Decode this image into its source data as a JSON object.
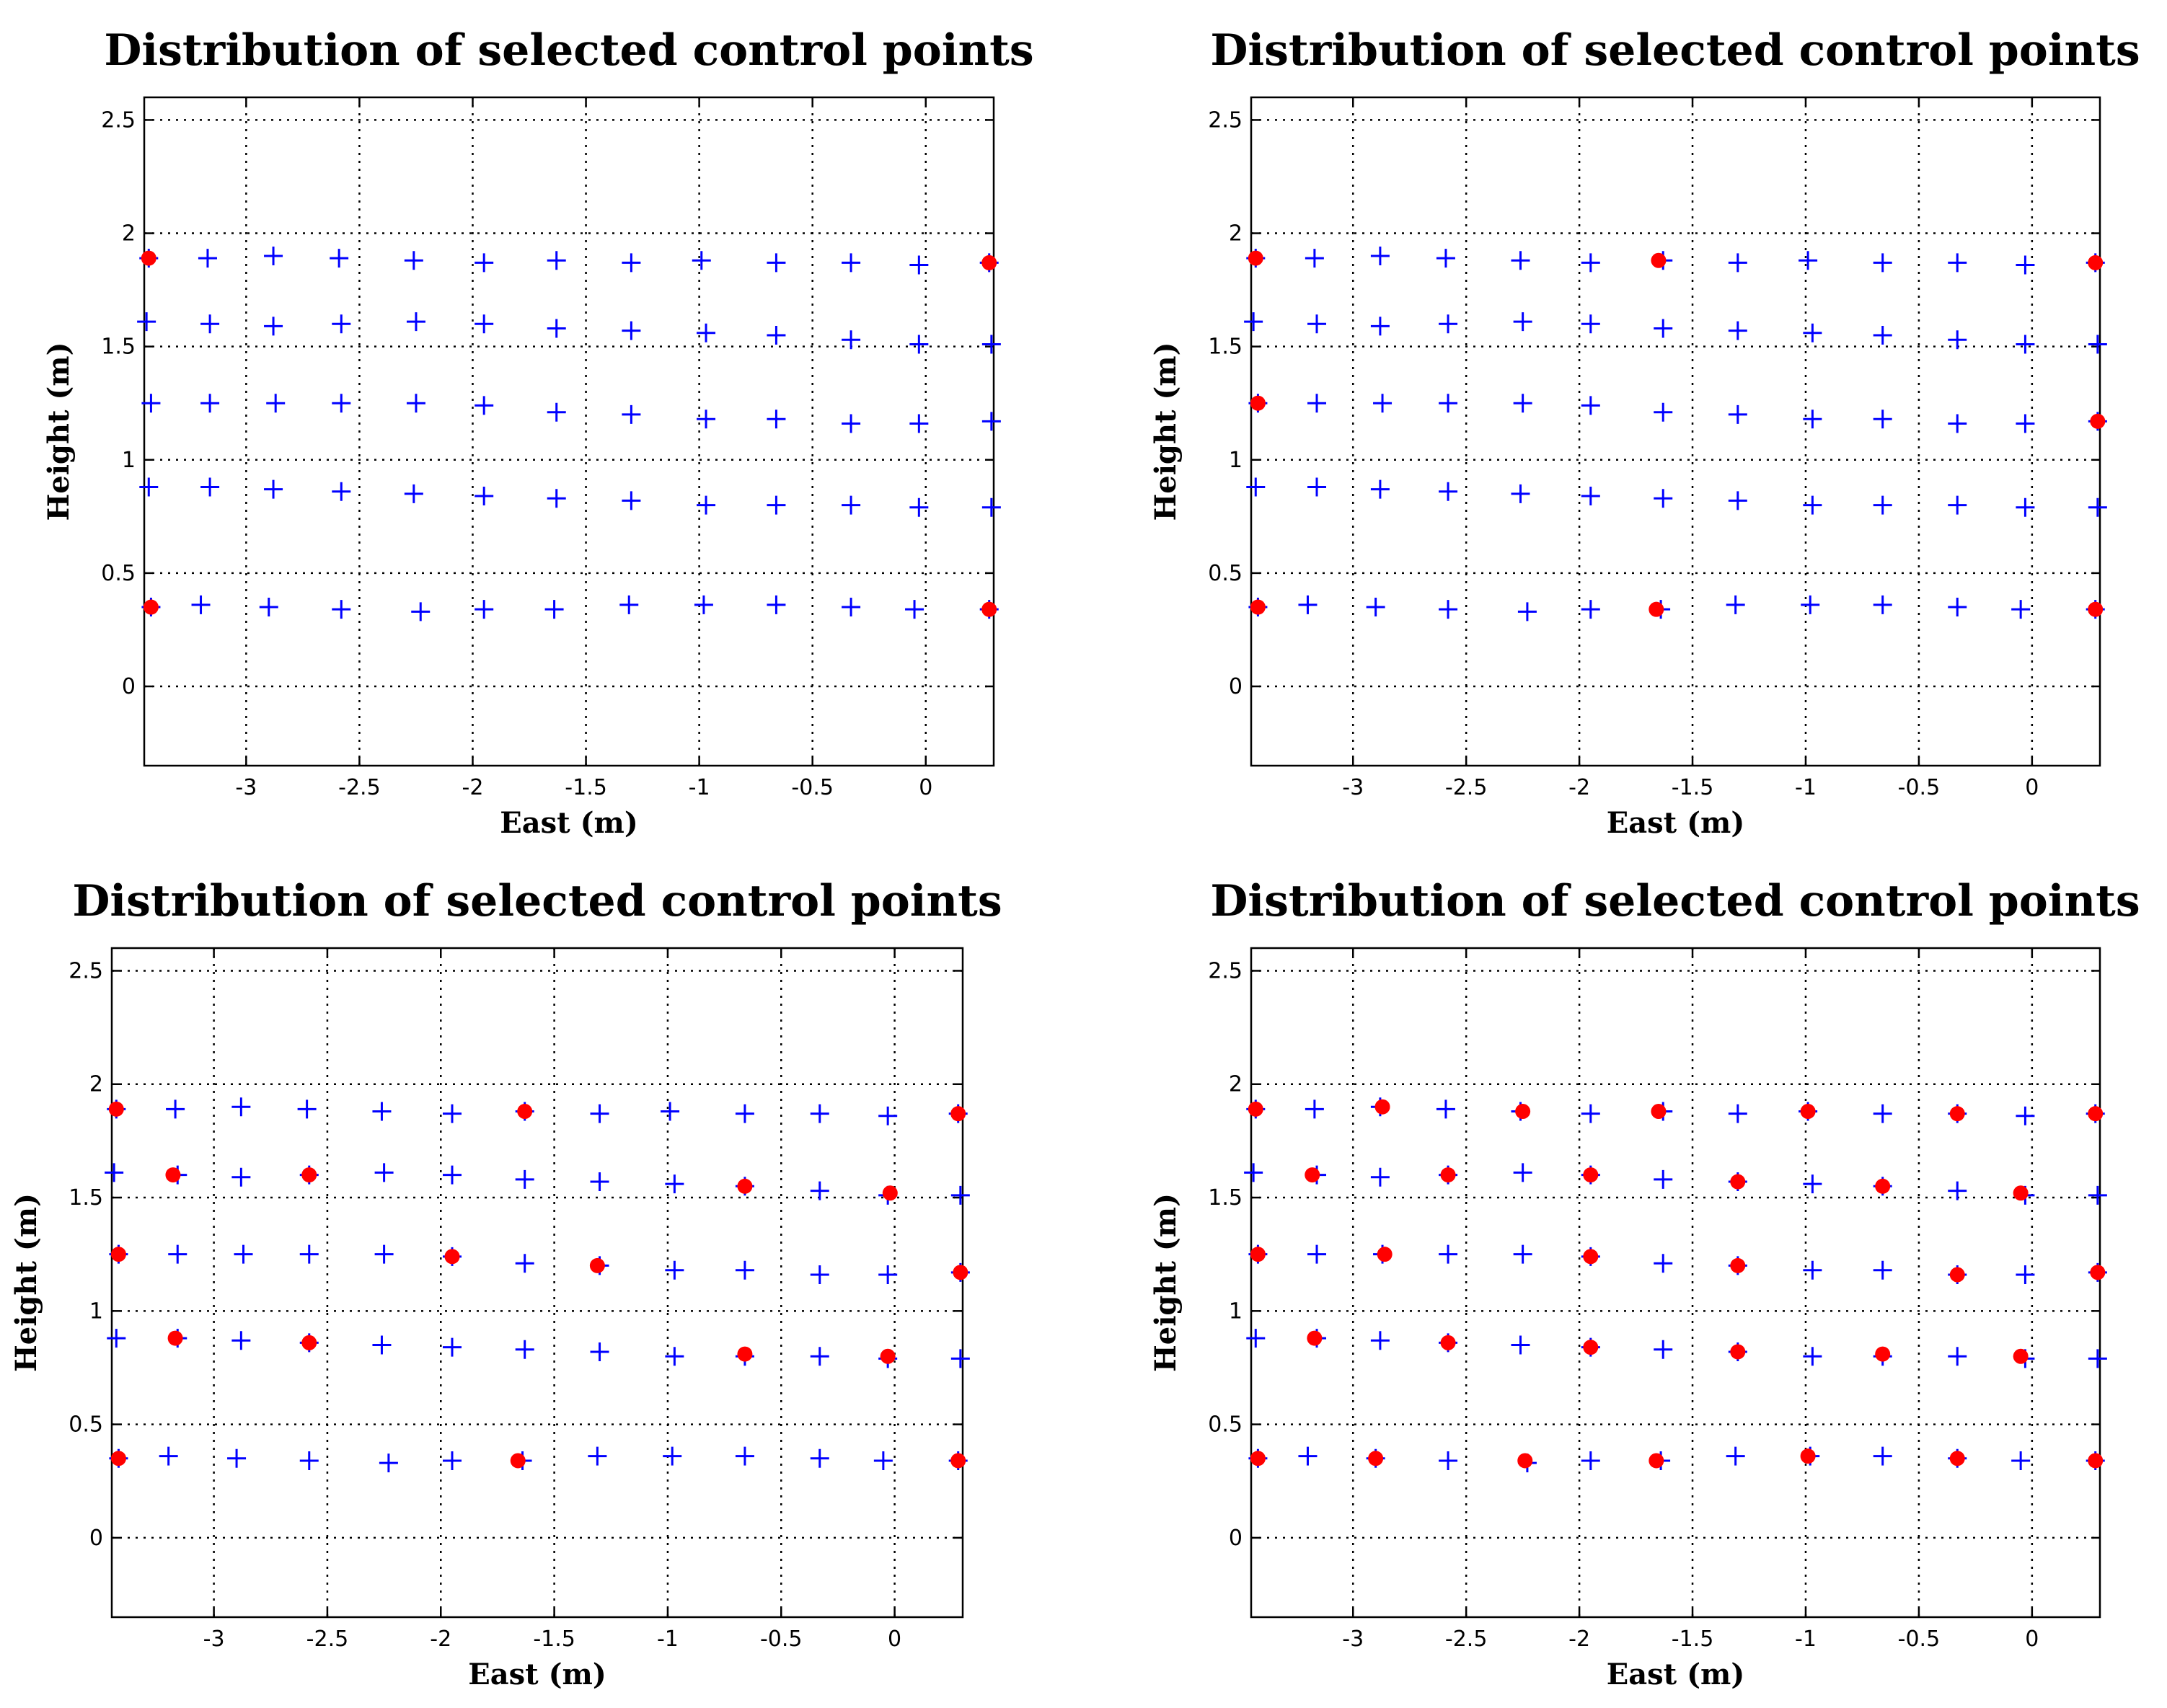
{
  "figure_title": "Distribution of selected control points",
  "colors": {
    "candidate": "#0000ff",
    "selected": "#ff0000",
    "grid": "#000000",
    "axes": "#000000"
  },
  "chart_data": [
    {
      "type": "scatter",
      "title": "Distribution of selected control points",
      "xlabel": "East (m)",
      "ylabel": "Height (m)",
      "xlim": [
        -3.45,
        0.3
      ],
      "ylim": [
        -0.35,
        2.6
      ],
      "xticks": [
        "-3",
        "-2.5",
        "-2",
        "-1.5",
        "-1",
        "-0.5",
        "0"
      ],
      "yticks": [
        "0",
        "0.5",
        "1",
        "1.5",
        "2",
        "2.5"
      ],
      "grid": true,
      "selected": [
        [
          -3.43,
          1.89
        ],
        [
          0.28,
          1.87
        ],
        [
          -3.42,
          0.35
        ],
        [
          0.28,
          0.34
        ]
      ]
    },
    {
      "type": "scatter",
      "title": "Distribution of selected control points",
      "xlabel": "East (m)",
      "ylabel": "Height (m)",
      "xlim": [
        -3.45,
        0.3
      ],
      "ylim": [
        -0.35,
        2.6
      ],
      "xticks": [
        "-3",
        "-2.5",
        "-2",
        "-1.5",
        "-1",
        "-0.5",
        "0"
      ],
      "yticks": [
        "0",
        "0.5",
        "1",
        "1.5",
        "2",
        "2.5"
      ],
      "grid": true,
      "selected": [
        [
          -3.43,
          1.89
        ],
        [
          -1.65,
          1.88
        ],
        [
          0.28,
          1.87
        ],
        [
          -3.42,
          1.25
        ],
        [
          0.29,
          1.17
        ],
        [
          -3.42,
          0.35
        ],
        [
          -1.66,
          0.34
        ],
        [
          0.28,
          0.34
        ]
      ]
    },
    {
      "type": "scatter",
      "title": "Distribution of selected control points",
      "xlabel": "East (m)",
      "ylabel": "Height (m)",
      "xlim": [
        -3.45,
        0.3
      ],
      "ylim": [
        -0.35,
        2.6
      ],
      "xticks": [
        "-3",
        "-2.5",
        "-2",
        "-1.5",
        "-1",
        "-0.5",
        "0"
      ],
      "yticks": [
        "0",
        "0.5",
        "1",
        "1.5",
        "2",
        "2.5"
      ],
      "grid": true,
      "selected": [
        [
          -3.43,
          1.89
        ],
        [
          -1.63,
          1.88
        ],
        [
          0.28,
          1.87
        ],
        [
          -3.18,
          1.6
        ],
        [
          -2.58,
          1.6
        ],
        [
          -0.66,
          1.55
        ],
        [
          -0.02,
          1.52
        ],
        [
          -3.42,
          1.25
        ],
        [
          -1.95,
          1.24
        ],
        [
          -1.31,
          1.2
        ],
        [
          0.29,
          1.17
        ],
        [
          -3.17,
          0.88
        ],
        [
          -2.58,
          0.86
        ],
        [
          -0.66,
          0.81
        ],
        [
          -0.03,
          0.8
        ],
        [
          -3.42,
          0.35
        ],
        [
          -1.66,
          0.34
        ],
        [
          0.28,
          0.34
        ]
      ]
    },
    {
      "type": "scatter",
      "title": "Distribution of selected control points",
      "xlabel": "East (m)",
      "ylabel": "Height (m)",
      "xlim": [
        -3.45,
        0.3
      ],
      "ylim": [
        -0.35,
        2.6
      ],
      "xticks": [
        "-3",
        "-2.5",
        "-2",
        "-1.5",
        "-1",
        "-0.5",
        "0"
      ],
      "yticks": [
        "0",
        "0.5",
        "1",
        "1.5",
        "2",
        "2.5"
      ],
      "grid": true,
      "selected": [
        [
          -3.43,
          1.89
        ],
        [
          -2.87,
          1.9
        ],
        [
          -2.25,
          1.88
        ],
        [
          -1.65,
          1.88
        ],
        [
          -0.99,
          1.88
        ],
        [
          -0.33,
          1.87
        ],
        [
          0.28,
          1.87
        ],
        [
          -3.18,
          1.6
        ],
        [
          -2.58,
          1.6
        ],
        [
          -1.95,
          1.6
        ],
        [
          -1.3,
          1.57
        ],
        [
          -0.66,
          1.55
        ],
        [
          -0.05,
          1.52
        ],
        [
          -3.42,
          1.25
        ],
        [
          -2.86,
          1.25
        ],
        [
          -1.95,
          1.24
        ],
        [
          -1.3,
          1.2
        ],
        [
          -0.33,
          1.16
        ],
        [
          0.29,
          1.17
        ],
        [
          -3.17,
          0.88
        ],
        [
          -2.58,
          0.86
        ],
        [
          -1.95,
          0.84
        ],
        [
          -1.3,
          0.82
        ],
        [
          -0.66,
          0.81
        ],
        [
          -0.05,
          0.8
        ],
        [
          -3.42,
          0.35
        ],
        [
          -2.9,
          0.35
        ],
        [
          -2.24,
          0.34
        ],
        [
          -1.66,
          0.34
        ],
        [
          -0.99,
          0.36
        ],
        [
          -0.33,
          0.35
        ],
        [
          0.28,
          0.34
        ]
      ]
    }
  ],
  "control_points": [
    [
      -3.43,
      1.89
    ],
    [
      -3.17,
      1.89
    ],
    [
      -2.88,
      1.9
    ],
    [
      -2.59,
      1.89
    ],
    [
      -2.26,
      1.88
    ],
    [
      -1.95,
      1.87
    ],
    [
      -1.63,
      1.88
    ],
    [
      -1.3,
      1.87
    ],
    [
      -0.99,
      1.88
    ],
    [
      -0.66,
      1.87
    ],
    [
      -0.33,
      1.87
    ],
    [
      -0.03,
      1.86
    ],
    [
      0.28,
      1.87
    ],
    [
      -3.44,
      1.61
    ],
    [
      -3.16,
      1.6
    ],
    [
      -2.88,
      1.59
    ],
    [
      -2.58,
      1.6
    ],
    [
      -2.25,
      1.61
    ],
    [
      -1.95,
      1.6
    ],
    [
      -1.63,
      1.58
    ],
    [
      -1.3,
      1.57
    ],
    [
      -0.97,
      1.56
    ],
    [
      -0.66,
      1.55
    ],
    [
      -0.33,
      1.53
    ],
    [
      -0.03,
      1.51
    ],
    [
      0.29,
      1.51
    ],
    [
      -3.42,
      1.25
    ],
    [
      -3.16,
      1.25
    ],
    [
      -2.87,
      1.25
    ],
    [
      -2.58,
      1.25
    ],
    [
      -2.25,
      1.25
    ],
    [
      -1.95,
      1.24
    ],
    [
      -1.63,
      1.21
    ],
    [
      -1.3,
      1.2
    ],
    [
      -0.97,
      1.18
    ],
    [
      -0.66,
      1.18
    ],
    [
      -0.33,
      1.16
    ],
    [
      -0.03,
      1.16
    ],
    [
      0.29,
      1.17
    ],
    [
      -3.43,
      0.88
    ],
    [
      -3.16,
      0.88
    ],
    [
      -2.88,
      0.87
    ],
    [
      -2.58,
      0.86
    ],
    [
      -2.26,
      0.85
    ],
    [
      -1.95,
      0.84
    ],
    [
      -1.63,
      0.83
    ],
    [
      -1.3,
      0.82
    ],
    [
      -0.97,
      0.8
    ],
    [
      -0.66,
      0.8
    ],
    [
      -0.33,
      0.8
    ],
    [
      -0.03,
      0.79
    ],
    [
      0.29,
      0.79
    ],
    [
      -3.42,
      0.35
    ],
    [
      -3.2,
      0.36
    ],
    [
      -2.9,
      0.35
    ],
    [
      -2.58,
      0.34
    ],
    [
      -2.23,
      0.33
    ],
    [
      -1.95,
      0.34
    ],
    [
      -1.64,
      0.34
    ],
    [
      -1.31,
      0.36
    ],
    [
      -0.98,
      0.36
    ],
    [
      -0.66,
      0.36
    ],
    [
      -0.33,
      0.35
    ],
    [
      -0.05,
      0.34
    ],
    [
      0.28,
      0.34
    ]
  ]
}
